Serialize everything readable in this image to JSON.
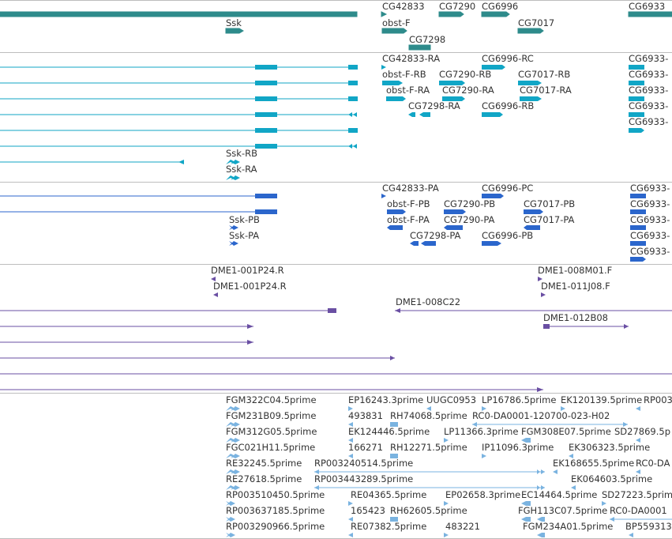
{
  "colors": {
    "background": "#ffffff",
    "divider": "#bdbdbd",
    "gene": "#2e8b8b",
    "transcript": "#11a6c6",
    "protein": "#2b66cc",
    "clone": "#6a4fa3",
    "est": "#7ab3e0",
    "label": "#333333"
  },
  "tracks": [
    {
      "name": "genes",
      "color_key": "gene",
      "labels": [
        "CG42833",
        "CG7290",
        "CG6996",
        "CG6933",
        "Ssk",
        "obst-F",
        "CG7017",
        "CG7298"
      ]
    },
    {
      "name": "transcripts",
      "color_key": "transcript",
      "labels": [
        "CG42833-RA",
        "CG6996-RC",
        "CG6933-",
        "obst-F-RB",
        "CG7290-RB",
        "CG7017-RB",
        "CG6933-",
        "obst-F-RA",
        "CG7290-RA",
        "CG7017-RA",
        "CG6933-",
        "CG7298-RA",
        "CG6996-RB",
        "CG6933-",
        "CG6933-",
        "Ssk-RB",
        "Ssk-RA"
      ]
    },
    {
      "name": "proteins",
      "color_key": "protein",
      "labels": [
        "CG42833-PA",
        "CG6996-PC",
        "CG6933-",
        "obst-F-PB",
        "CG7290-PB",
        "CG7017-PB",
        "CG6933-",
        "obst-F-PA",
        "CG7290-PA",
        "CG7017-PA",
        "CG6933-",
        "Ssk-PB",
        "Ssk-PA",
        "CG7298-PA",
        "CG6996-PB",
        "CG6933-",
        "CG6933-"
      ]
    },
    {
      "name": "clones",
      "color_key": "clone",
      "labels": [
        "DME1-001P24.R",
        "DME1-008M01.F",
        "DME1-001P24.R",
        "DME1-011J08.F",
        "DME1-008C22",
        "DME1-012B08"
      ]
    },
    {
      "name": "ests",
      "color_key": "est",
      "labels": [
        "FGM322C04.5prime",
        "EP16243.3prime",
        "UUGC0953",
        "LP16786.5prime",
        "EK120139.5prime",
        "RP003",
        "FGM231B09.5prime",
        "493831",
        "RH74068.5prime",
        "RC0-DA0001-120700-023-H02",
        "FGM312G05.5prime",
        "EK124446.5prime",
        "LP11366.3prime",
        "FGM308E07.5prime",
        "SD27869.5p",
        "FGC021H11.5prime",
        "166271",
        "RH12271.5prime",
        "IP11096.3prime",
        "EK306323.5prime",
        "RE32245.5prime",
        "RP003240514.5prime",
        "EK168655.5prime",
        "RC0-DA",
        "RE27618.5prime",
        "RP003443289.5prime",
        "EK064603.5prime",
        "RP003510450.5prime",
        "RE04365.5prime",
        "EP02658.3prime",
        "EC14464.5prime",
        "SD27223.5prime",
        "RP003637185.5prime",
        "165423",
        "RH62605.5prime",
        "FGH113C07.5prime",
        "RC0-DA0001",
        "RP003290966.5prime",
        "RE07382.5prime",
        "483221",
        "FGM234A01.5prime",
        "BP559313"
      ]
    }
  ]
}
